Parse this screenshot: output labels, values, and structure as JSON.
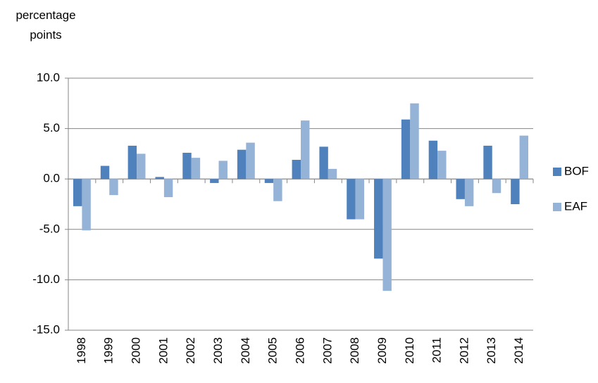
{
  "chart_data": {
    "type": "bar",
    "y_label": "percentage points",
    "categories": [
      "1998",
      "1999",
      "2000",
      "2001",
      "2002",
      "2003",
      "2004",
      "2005",
      "2006",
      "2007",
      "2008",
      "2009",
      "2010",
      "2011",
      "2012",
      "2013",
      "2014"
    ],
    "series": [
      {
        "name": "BOF",
        "color": "#4f81bd",
        "values": [
          -2.7,
          1.3,
          3.3,
          0.2,
          2.6,
          -0.4,
          2.9,
          -0.4,
          1.9,
          3.2,
          -4.0,
          -7.9,
          5.9,
          3.8,
          -2.0,
          3.3,
          -2.5
        ]
      },
      {
        "name": "EAF",
        "color": "#95b3d7",
        "values": [
          -5.1,
          -1.6,
          2.5,
          -1.8,
          2.1,
          1.8,
          3.6,
          -2.2,
          5.8,
          1.0,
          -4.0,
          -11.1,
          7.5,
          2.8,
          -2.7,
          -1.4,
          4.3
        ]
      }
    ],
    "ylim": [
      -15,
      10
    ],
    "yticks": [
      {
        "value": -15,
        "label": "-15.0"
      },
      {
        "value": -10,
        "label": "-10.0"
      },
      {
        "value": -5,
        "label": "-5.0"
      },
      {
        "value": 0,
        "label": "0.0"
      },
      {
        "value": 5,
        "label": "5.0"
      },
      {
        "value": 10,
        "label": "10.0"
      }
    ],
    "grid": true,
    "legend": "right"
  }
}
